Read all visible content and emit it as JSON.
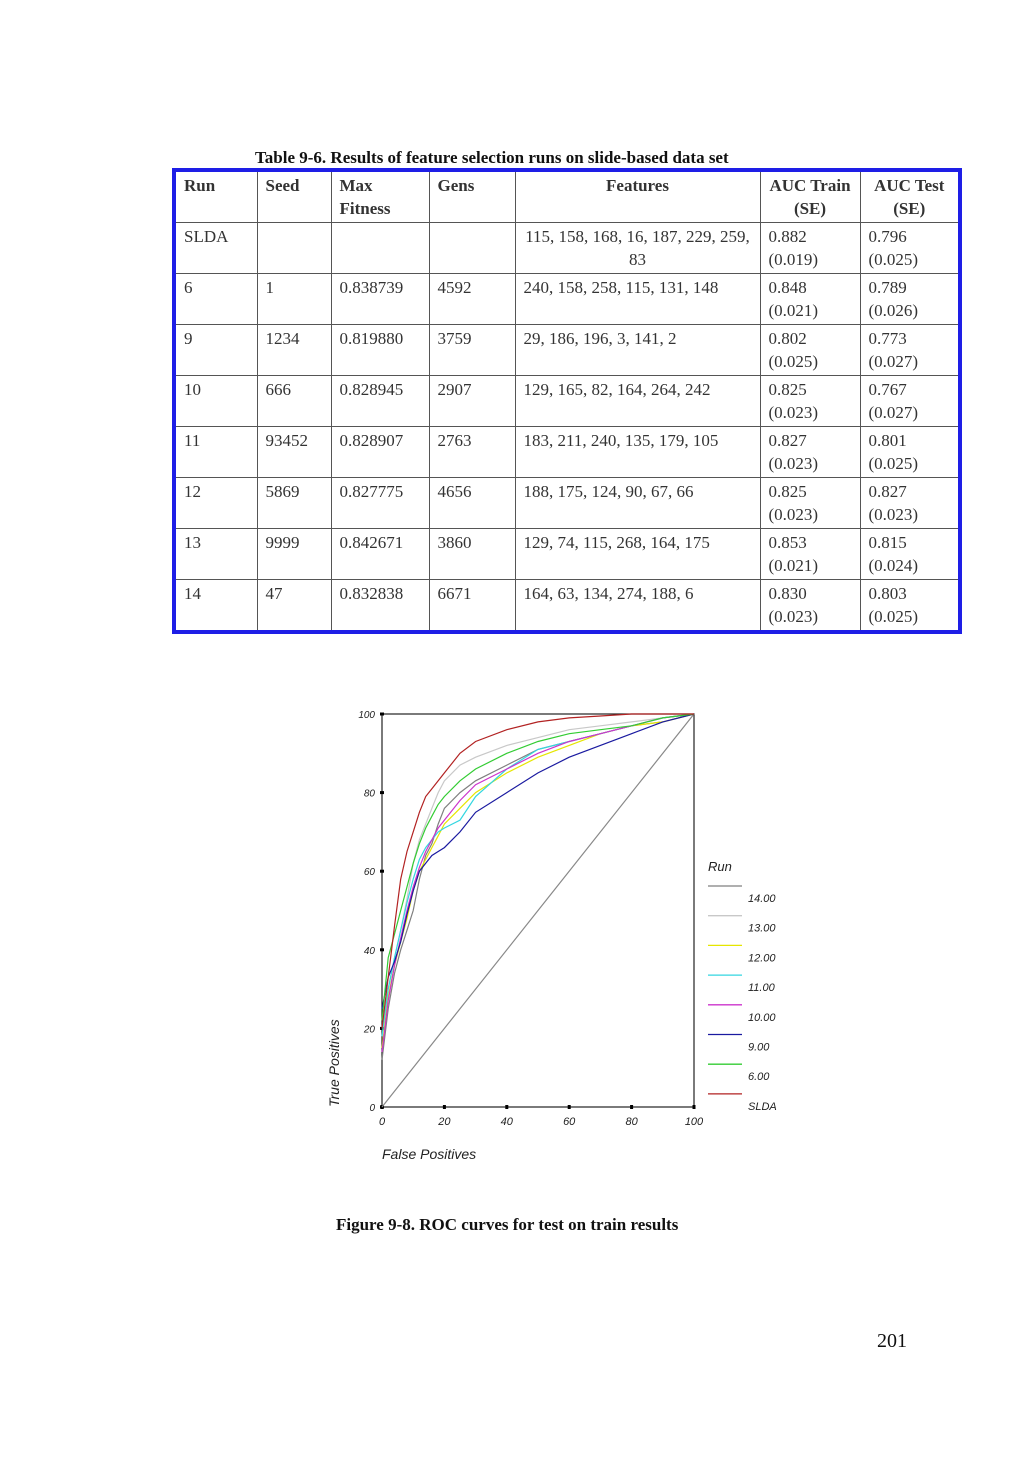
{
  "table": {
    "caption": "Table 9-6. Results of feature selection runs on slide-based data set",
    "headers": [
      "Run",
      "Seed",
      "Max Fitness",
      "Gens",
      "Features",
      "AUC Train (SE)",
      "AUC Test (SE)"
    ],
    "rows": [
      {
        "run": "SLDA",
        "seed": "",
        "max_fitness": "",
        "gens": "",
        "features": "115, 158, 168, 16, 187, 229, 259, 83",
        "auc_train": "0.882",
        "auc_train_se": "(0.019)",
        "auc_test": "0.796",
        "auc_test_se": "(0.025)"
      },
      {
        "run": "6",
        "seed": "1",
        "max_fitness": "0.838739",
        "gens": "4592",
        "features": "240, 158, 258, 115, 131, 148",
        "auc_train": "0.848",
        "auc_train_se": "(0.021)",
        "auc_test": "0.789",
        "auc_test_se": "(0.026)"
      },
      {
        "run": "9",
        "seed": "1234",
        "max_fitness": "0.819880",
        "gens": "3759",
        "features": "29, 186, 196, 3, 141, 2",
        "auc_train": "0.802",
        "auc_train_se": "(0.025)",
        "auc_test": "0.773",
        "auc_test_se": "(0.027)"
      },
      {
        "run": "10",
        "seed": "666",
        "max_fitness": "0.828945",
        "gens": "2907",
        "features": "129, 165, 82, 164, 264, 242",
        "auc_train": "0.825",
        "auc_train_se": "(0.023)",
        "auc_test": "0.767",
        "auc_test_se": "(0.027)"
      },
      {
        "run": "11",
        "seed": "93452",
        "max_fitness": "0.828907",
        "gens": "2763",
        "features": "183, 211, 240, 135, 179, 105",
        "auc_train": "0.827",
        "auc_train_se": "(0.023)",
        "auc_test": "0.801",
        "auc_test_se": "(0.025)"
      },
      {
        "run": "12",
        "seed": "5869",
        "max_fitness": "0.827775",
        "gens": "4656",
        "features": "188, 175, 124, 90, 67, 66",
        "auc_train": "0.825",
        "auc_train_se": "(0.023)",
        "auc_test": "0.827",
        "auc_test_se": "(0.023)"
      },
      {
        "run": "13",
        "seed": "9999",
        "max_fitness": "0.842671",
        "gens": "3860",
        "features": "129, 74, 115, 268, 164, 175",
        "auc_train": "0.853",
        "auc_train_se": "(0.021)",
        "auc_test": "0.815",
        "auc_test_se": "(0.024)"
      },
      {
        "run": "14",
        "seed": "47",
        "max_fitness": "0.832838",
        "gens": "6671",
        "features": "164, 63, 134, 274, 188, 6",
        "auc_train": "0.830",
        "auc_train_se": "(0.023)",
        "auc_test": "0.803",
        "auc_test_se": "(0.025)"
      }
    ]
  },
  "chart_data": {
    "type": "line",
    "title": "",
    "xlabel": "False Positives",
    "ylabel": "True Positives",
    "xlim": [
      0,
      100
    ],
    "ylim": [
      0,
      100
    ],
    "xticks": [
      "0",
      "20",
      "40",
      "60",
      "80",
      "100"
    ],
    "yticks": [
      "0",
      "20",
      "40",
      "60",
      "80",
      "100"
    ],
    "grid": false,
    "legend_title": "Run",
    "legend_position": "right",
    "reference_line": {
      "color": "#888888",
      "points": [
        [
          0,
          0
        ],
        [
          100,
          100
        ]
      ]
    },
    "series": [
      {
        "name": "14.00",
        "color": "#7f7f7f",
        "points": [
          [
            0,
            12
          ],
          [
            2,
            25
          ],
          [
            4,
            34
          ],
          [
            6,
            40
          ],
          [
            8,
            45
          ],
          [
            10,
            50
          ],
          [
            12,
            58
          ],
          [
            14,
            64
          ],
          [
            16,
            67
          ],
          [
            18,
            72
          ],
          [
            20,
            76
          ],
          [
            25,
            80
          ],
          [
            30,
            83
          ],
          [
            40,
            87
          ],
          [
            50,
            91
          ],
          [
            60,
            93
          ],
          [
            70,
            95
          ],
          [
            80,
            97
          ],
          [
            90,
            98
          ],
          [
            100,
            100
          ]
        ]
      },
      {
        "name": "13.00",
        "color": "#c8c8c8",
        "points": [
          [
            0,
            20
          ],
          [
            2,
            30
          ],
          [
            4,
            38
          ],
          [
            6,
            45
          ],
          [
            8,
            53
          ],
          [
            10,
            62
          ],
          [
            12,
            68
          ],
          [
            14,
            72
          ],
          [
            16,
            76
          ],
          [
            18,
            80
          ],
          [
            20,
            83
          ],
          [
            25,
            87
          ],
          [
            30,
            89
          ],
          [
            40,
            92
          ],
          [
            50,
            94
          ],
          [
            60,
            96
          ],
          [
            70,
            97
          ],
          [
            80,
            98
          ],
          [
            90,
            99
          ],
          [
            100,
            100
          ]
        ]
      },
      {
        "name": "12.00",
        "color": "#e6e600",
        "points": [
          [
            0,
            15
          ],
          [
            2,
            28
          ],
          [
            4,
            36
          ],
          [
            6,
            42
          ],
          [
            8,
            48
          ],
          [
            10,
            55
          ],
          [
            12,
            60
          ],
          [
            14,
            63
          ],
          [
            16,
            66
          ],
          [
            18,
            69
          ],
          [
            20,
            72
          ],
          [
            25,
            76
          ],
          [
            30,
            80
          ],
          [
            40,
            85
          ],
          [
            50,
            89
          ],
          [
            60,
            92
          ],
          [
            70,
            95
          ],
          [
            80,
            97
          ],
          [
            90,
            98
          ],
          [
            100,
            100
          ]
        ]
      },
      {
        "name": "11.00",
        "color": "#33d6e0",
        "points": [
          [
            0,
            18
          ],
          [
            2,
            30
          ],
          [
            4,
            38
          ],
          [
            6,
            45
          ],
          [
            8,
            52
          ],
          [
            10,
            58
          ],
          [
            12,
            63
          ],
          [
            14,
            66
          ],
          [
            16,
            68
          ],
          [
            18,
            70
          ],
          [
            20,
            71
          ],
          [
            25,
            73
          ],
          [
            30,
            79
          ],
          [
            40,
            86
          ],
          [
            50,
            91
          ],
          [
            60,
            93
          ],
          [
            70,
            95
          ],
          [
            80,
            97
          ],
          [
            90,
            99
          ],
          [
            100,
            100
          ]
        ]
      },
      {
        "name": "10.00",
        "color": "#cc33cc",
        "points": [
          [
            0,
            14
          ],
          [
            2,
            27
          ],
          [
            4,
            36
          ],
          [
            6,
            43
          ],
          [
            8,
            50
          ],
          [
            10,
            56
          ],
          [
            12,
            61
          ],
          [
            14,
            65
          ],
          [
            16,
            68
          ],
          [
            18,
            71
          ],
          [
            20,
            73
          ],
          [
            25,
            78
          ],
          [
            30,
            82
          ],
          [
            40,
            86
          ],
          [
            50,
            90
          ],
          [
            60,
            93
          ],
          [
            70,
            95
          ],
          [
            80,
            97
          ],
          [
            90,
            99
          ],
          [
            100,
            100
          ]
        ]
      },
      {
        "name": "9.00",
        "color": "#1a1aa0",
        "points": [
          [
            0,
            25
          ],
          [
            2,
            33
          ],
          [
            4,
            37
          ],
          [
            6,
            42
          ],
          [
            8,
            49
          ],
          [
            10,
            55
          ],
          [
            12,
            60
          ],
          [
            14,
            62
          ],
          [
            16,
            64
          ],
          [
            18,
            65
          ],
          [
            20,
            66
          ],
          [
            25,
            70
          ],
          [
            30,
            75
          ],
          [
            40,
            80
          ],
          [
            50,
            85
          ],
          [
            60,
            89
          ],
          [
            70,
            92
          ],
          [
            80,
            95
          ],
          [
            90,
            98
          ],
          [
            100,
            100
          ]
        ]
      },
      {
        "name": "6.00",
        "color": "#33cc33",
        "points": [
          [
            0,
            22
          ],
          [
            2,
            38
          ],
          [
            4,
            44
          ],
          [
            6,
            50
          ],
          [
            8,
            56
          ],
          [
            10,
            62
          ],
          [
            12,
            67
          ],
          [
            14,
            71
          ],
          [
            16,
            74
          ],
          [
            18,
            77
          ],
          [
            20,
            79
          ],
          [
            25,
            83
          ],
          [
            30,
            86
          ],
          [
            40,
            90
          ],
          [
            50,
            93
          ],
          [
            60,
            95
          ],
          [
            70,
            96
          ],
          [
            80,
            97
          ],
          [
            90,
            99
          ],
          [
            100,
            100
          ]
        ]
      },
      {
        "name": "SLDA",
        "color": "#b22222",
        "points": [
          [
            0,
            20
          ],
          [
            2,
            33
          ],
          [
            4,
            46
          ],
          [
            6,
            58
          ],
          [
            8,
            65
          ],
          [
            10,
            70
          ],
          [
            12,
            75
          ],
          [
            14,
            79
          ],
          [
            16,
            81
          ],
          [
            18,
            83
          ],
          [
            20,
            85
          ],
          [
            25,
            90
          ],
          [
            30,
            93
          ],
          [
            40,
            96
          ],
          [
            50,
            98
          ],
          [
            60,
            99
          ],
          [
            70,
            99.5
          ],
          [
            80,
            100
          ],
          [
            90,
            100
          ],
          [
            100,
            100
          ]
        ]
      }
    ]
  },
  "figure_caption": "Figure 9-8. ROC curves for test on train results",
  "page_number": "201"
}
